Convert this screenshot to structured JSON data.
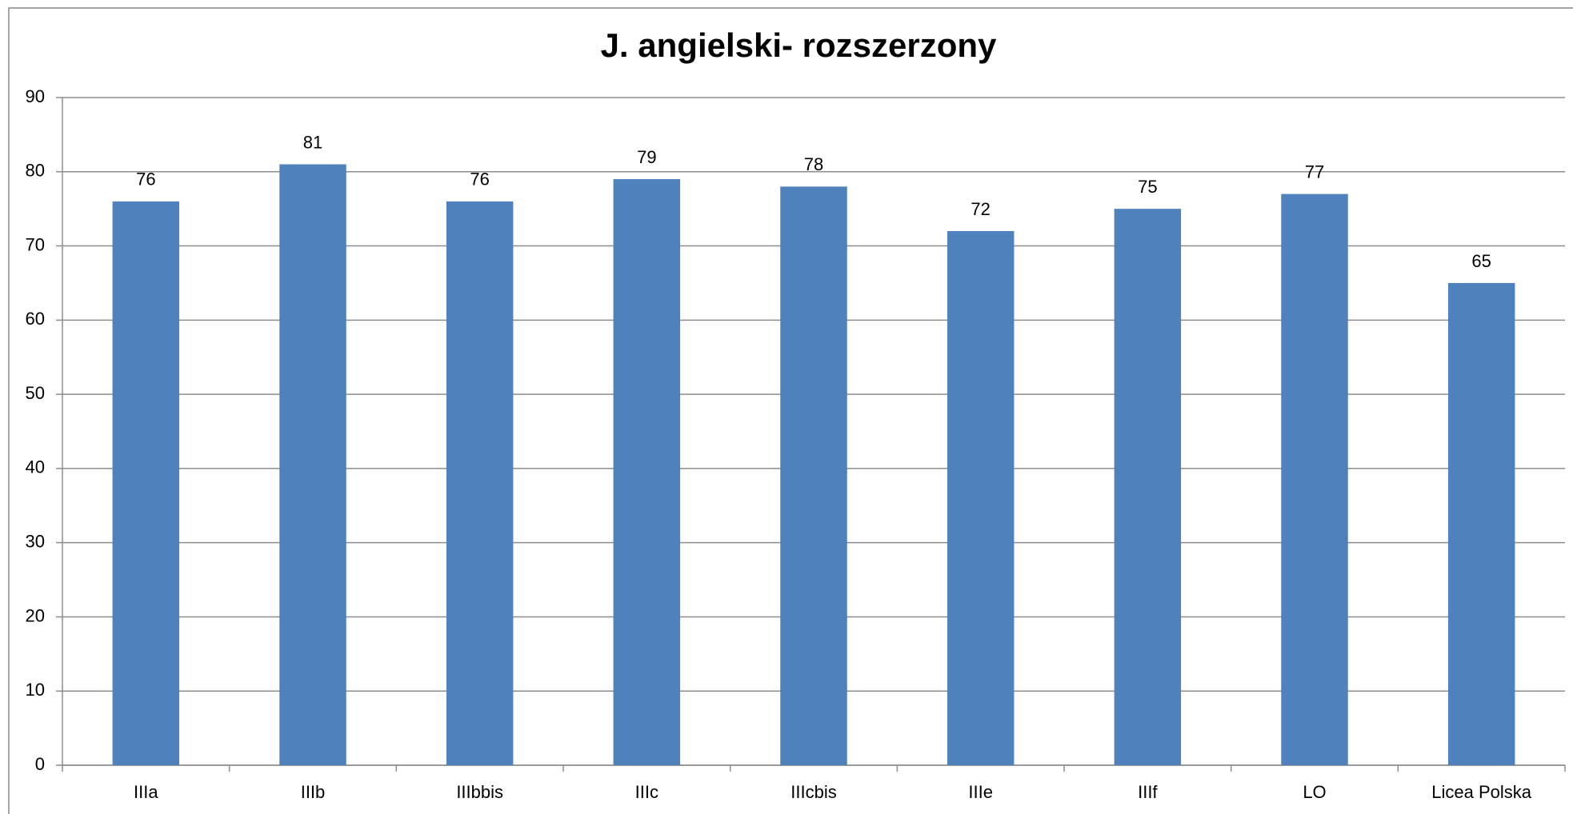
{
  "chart_data": {
    "type": "bar",
    "title": "J. angielski- rozszerzony",
    "categories": [
      "IIIa",
      "IIIb",
      "IIIbbis",
      "IIIc",
      "IIIcbis",
      "IIIe",
      "IIIf",
      "LO",
      "Licea Polska"
    ],
    "values": [
      76,
      81,
      76,
      79,
      78,
      72,
      75,
      77,
      65
    ],
    "color": "#4f81bd",
    "ylim": [
      0,
      90
    ],
    "yticks": [
      0,
      10,
      20,
      30,
      40,
      50,
      60,
      70,
      80,
      90
    ],
    "grid": true
  }
}
